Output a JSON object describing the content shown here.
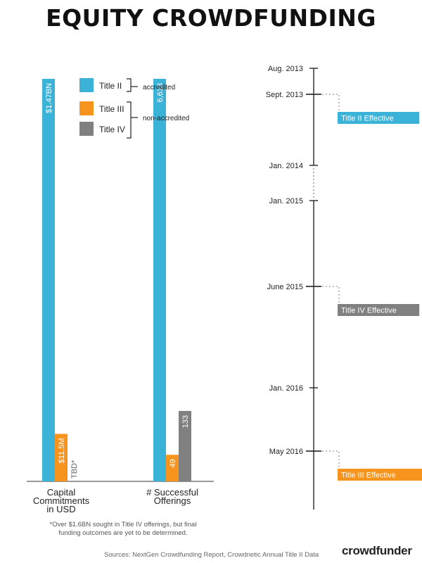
{
  "title": "EQUITY CROWDFUNDING",
  "colors": {
    "title_ii": "#3bb3d8",
    "title_iii": "#f7941d",
    "title_iv": "#808080",
    "axis": "#333333",
    "dotted": "#9a9a9a"
  },
  "legend": {
    "items": [
      {
        "label": "Title II",
        "color": "#3bb3d8"
      },
      {
        "label": "Title III",
        "color": "#f7941d"
      },
      {
        "label": "Title IV",
        "color": "#808080"
      }
    ],
    "group_accredited": "accredited",
    "group_non_accredited": "non-accredited"
  },
  "chart_data": [
    {
      "type": "bar",
      "categories": [
        "Capital Commitments in USD",
        "# Successful Offerings"
      ],
      "category_lines": [
        [
          "Capital",
          "Commitments",
          "in USD"
        ],
        [
          "# Successful",
          "Offerings"
        ]
      ],
      "series": [
        {
          "name": "Title II",
          "values": [
            1470000000,
            6613
          ],
          "labels": [
            "$1.47BN",
            "6,613"
          ]
        },
        {
          "name": "Title III",
          "values": [
            11500000,
            49
          ],
          "labels": [
            "$11.5M",
            "49"
          ]
        },
        {
          "name": "Title IV",
          "values": [
            null,
            133
          ],
          "labels": [
            "TBD*",
            "133"
          ]
        }
      ]
    },
    {
      "type": "timeline",
      "ticks": [
        "Aug. 2013",
        "Sept. 2013",
        "Jan. 2014",
        "Jan. 2015",
        "June 2015",
        "Jan. 2016",
        "May 2016"
      ],
      "events": [
        {
          "at": "Sept. 2013",
          "label": "Title II Effective",
          "color": "#3bb3d8"
        },
        {
          "at": "June 2015",
          "label": "Title IV Effective",
          "color": "#808080"
        },
        {
          "at": "May 2016",
          "label": "Title III Effective",
          "color": "#f7941d"
        }
      ],
      "gap_between": [
        "Jan. 2014",
        "Jan. 2015"
      ]
    }
  ],
  "footnote_lines": [
    "*Over $1.6BN sought in Title IV offerings, but final",
    "funding outcomes are yet to be determined."
  ],
  "sources": "Sources: NextGen Crowdfunding Report, Crowdnetic Annual Title II Data",
  "brand": {
    "part1": "crowd",
    "part2": "funder"
  }
}
